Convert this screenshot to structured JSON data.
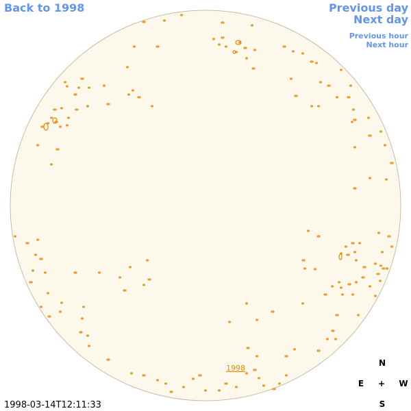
{
  "links": {
    "back": "Back to 1998",
    "previous_day": "Previous day",
    "next_day": "Next day",
    "previous_hour": "Previous hour",
    "next_hour": "Next hour"
  },
  "disk_label": "1998",
  "timestamp": "1998-03-14T12:11:33",
  "compass": {
    "north": "N",
    "east": "E",
    "center": "+",
    "west": "W",
    "south": "S"
  }
}
